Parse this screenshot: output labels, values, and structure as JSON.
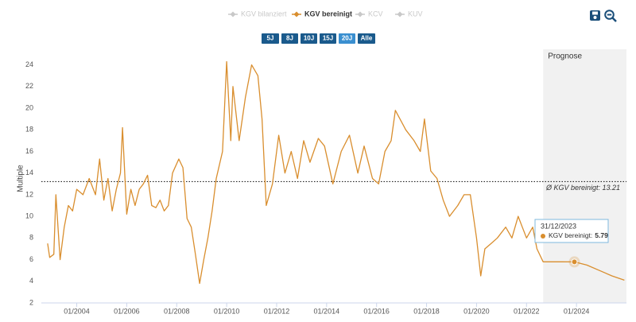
{
  "chart_data": {
    "type": "line",
    "y_title": "Multiple",
    "series": [
      {
        "name": "KGV bilanziert",
        "visible": false
      },
      {
        "name": "KGV bereinigt",
        "visible": true,
        "color": "#d98e2e",
        "values": [
          7.5,
          6.2,
          6.5,
          12.0,
          6.0,
          9.0,
          11.0,
          10.5,
          12.5,
          12.0,
          13.5,
          12.0,
          15.3,
          11.5,
          13.5,
          10.5,
          12.5,
          14.0,
          18.2,
          10.2,
          12.5,
          11.0,
          12.5,
          13.0,
          13.8,
          11.0,
          10.8,
          11.5,
          10.5,
          11.0,
          14.0,
          15.3,
          14.5,
          9.8,
          9.0,
          6.5,
          3.8,
          6.0,
          8.0,
          10.5,
          13.5,
          16.0,
          24.3,
          17.0,
          22.0,
          17.0,
          21.0,
          24.0,
          23.0,
          19.0,
          11.0,
          13.0,
          17.5,
          14.0,
          16.0,
          13.5,
          17.0,
          15.0,
          17.2,
          16.5,
          13.0,
          16.0,
          17.5,
          14.0,
          16.5,
          13.5,
          13.0,
          16.0,
          17.0,
          19.8,
          18.0,
          17.0,
          16.0,
          19.0,
          14.2,
          13.5,
          11.5,
          10.0,
          11.0,
          12.0,
          12.0,
          8.0,
          4.5,
          7.0,
          7.5,
          8.0,
          9.0,
          8.0,
          10.0,
          9.0,
          8.0,
          9.0,
          7.0,
          5.8,
          5.8,
          5.8,
          5.79,
          5.5,
          5.0,
          4.5,
          4.1
        ]
      },
      {
        "name": "KCV",
        "visible": false
      },
      {
        "name": "KUV",
        "visible": false
      }
    ],
    "x": [
      "11/2002",
      "12/2002",
      "02/2003",
      "03/2003",
      "05/2003",
      "07/2003",
      "09/2003",
      "11/2003",
      "01/2004",
      "04/2004",
      "07/2004",
      "10/2004",
      "12/2004",
      "02/2005",
      "04/2005",
      "06/2005",
      "08/2005",
      "10/2005",
      "11/2005",
      "01/2006",
      "03/2006",
      "05/2006",
      "07/2006",
      "09/2006",
      "11/2006",
      "01/2007",
      "03/2007",
      "05/2007",
      "07/2007",
      "09/2007",
      "11/2007",
      "02/2008",
      "04/2008",
      "06/2008",
      "08/2008",
      "10/2008",
      "12/2008",
      "02/2009",
      "04/2009",
      "06/2009",
      "08/2009",
      "11/2009",
      "01/2010",
      "03/2010",
      "04/2010",
      "07/2010",
      "10/2010",
      "01/2011",
      "04/2011",
      "06/2011",
      "08/2011",
      "11/2011",
      "02/2012",
      "05/2012",
      "08/2012",
      "11/2012",
      "02/2013",
      "05/2013",
      "09/2013",
      "12/2013",
      "04/2014",
      "08/2014",
      "12/2014",
      "04/2015",
      "07/2015",
      "11/2015",
      "02/2016",
      "05/2016",
      "08/2016",
      "10/2016",
      "03/2017",
      "07/2017",
      "10/2017",
      "12/2017",
      "03/2018",
      "06/2018",
      "09/2018",
      "12/2018",
      "04/2019",
      "07/2019",
      "10/2019",
      "01/2020",
      "03/2020",
      "05/2020",
      "08/2020",
      "11/2020",
      "03/2021",
      "06/2021",
      "09/2021",
      "11/2021",
      "01/2022",
      "04/2022",
      "06/2022",
      "09/2022",
      "12/2022",
      "06/2023",
      "12/2023",
      "06/2024",
      "12/2024",
      "06/2025",
      "12/2025"
    ],
    "xlim": [
      "08/2002",
      "01/2026"
    ],
    "xticks": [
      "01/2004",
      "01/2006",
      "01/2008",
      "01/2010",
      "01/2012",
      "01/2014",
      "01/2016",
      "01/2018",
      "01/2020",
      "01/2022",
      "01/2024"
    ],
    "ylim": [
      2,
      25
    ],
    "yticks": [
      2,
      4,
      6,
      8,
      10,
      12,
      14,
      16,
      18,
      20,
      22,
      24
    ],
    "grid": false,
    "average": {
      "value": 13.21,
      "label": "Ø KGV bereinigt: 13.21"
    },
    "shaded_region": {
      "from": "09/2022",
      "label": "Prognose"
    },
    "tooltip": {
      "date": "31/12/2023",
      "label": "KGV bereinigt:",
      "value": 5.79
    }
  },
  "controls": {
    "ranges": [
      "5J",
      "8J",
      "10J",
      "15J",
      "20J",
      "Alle"
    ],
    "selected": 4
  }
}
